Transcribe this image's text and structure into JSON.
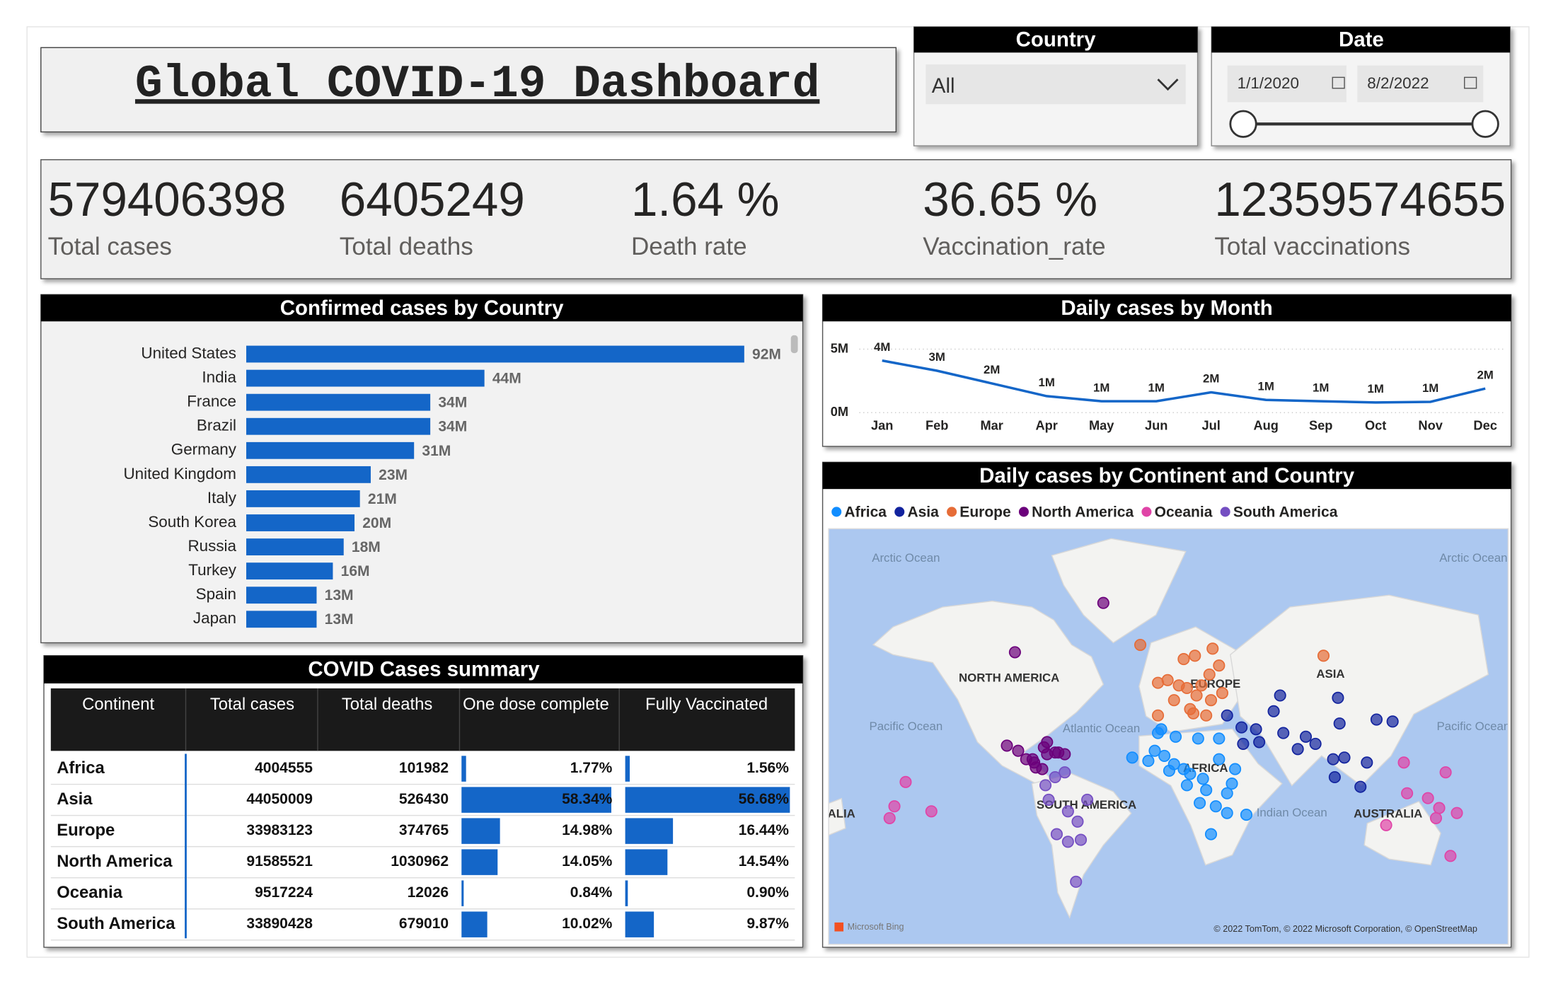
{
  "title": "Global COVID-19 Dashboard",
  "filters": {
    "country": {
      "label": "Country",
      "value": "All"
    },
    "date": {
      "label": "Date",
      "start": "1/1/2020",
      "end": "8/2/2022"
    }
  },
  "kpis": [
    {
      "value": "579406398",
      "label": "Total cases"
    },
    {
      "value": "6405249",
      "label": "Total deaths"
    },
    {
      "value": "1.64 %",
      "label": "Death rate"
    },
    {
      "value": "36.65 %",
      "label": "Vaccination_rate"
    },
    {
      "value": "12359574655",
      "label": "Total vaccinations"
    }
  ],
  "chart_data": [
    {
      "type": "bar",
      "orientation": "horizontal",
      "title": "Confirmed cases by Country",
      "color": "#1466c8",
      "categories": [
        "United States",
        "India",
        "France",
        "Brazil",
        "Germany",
        "United Kingdom",
        "Italy",
        "South Korea",
        "Russia",
        "Turkey",
        "Spain",
        "Japan"
      ],
      "values": [
        92,
        44,
        34,
        34,
        31,
        23,
        21,
        20,
        18,
        16,
        13,
        13
      ],
      "value_labels": [
        "92M",
        "44M",
        "34M",
        "34M",
        "31M",
        "23M",
        "21M",
        "20M",
        "18M",
        "16M",
        "13M",
        "13M"
      ]
    },
    {
      "type": "line",
      "title": "Daily cases by Month",
      "color": "#1466c8",
      "categories": [
        "Jan",
        "Feb",
        "Mar",
        "Apr",
        "May",
        "Jun",
        "Jul",
        "Aug",
        "Sep",
        "Oct",
        "Nov",
        "Dec"
      ],
      "values": [
        4.1,
        3.3,
        2.3,
        1.3,
        0.9,
        0.9,
        1.6,
        1.0,
        0.9,
        0.8,
        0.85,
        1.9
      ],
      "value_labels": [
        "4M",
        "3M",
        "2M",
        "1M",
        "1M",
        "1M",
        "2M",
        "1M",
        "1M",
        "1M",
        "1M",
        "2M"
      ],
      "ylim": [
        0,
        5
      ],
      "yticks": [
        {
          "value": 0,
          "label": "0M"
        },
        {
          "value": 5,
          "label": "5M"
        }
      ],
      "grid": true
    },
    {
      "type": "map",
      "title": "Daily cases by Continent and Country",
      "annotations": [
        "Arctic Ocean",
        "Arctic Ocean",
        "Pacific Ocean",
        "Pacific Ocean",
        "Atlantic Ocean",
        "Indian Ocean",
        "NORTH AMERICA",
        "SOUTH AMERICA",
        "EUROPE",
        "AFRICA",
        "ASIA",
        "AUSTRALIA",
        "ALIA"
      ],
      "attribution": [
        "Microsoft Bing",
        "© 2022 TomTom, © 2022 Microsoft Corporation, © OpenStreetMap"
      ],
      "series": [
        {
          "name": "Africa",
          "color": "#118dff",
          "lat": [
            9,
            27,
            30,
            0,
            9,
            32,
            28,
            8,
            14,
            -4,
            -12,
            -19,
            15,
            -6,
            -14,
            17,
            6,
            27,
            -18,
            16,
            -30,
            3,
            12,
            -1,
            20
          ],
          "lon": [
            8,
            30,
            -8,
            38,
            40,
            -6,
            3,
            -1,
            -14,
            22,
            18,
            47,
            30,
            35,
            28,
            -4,
            12,
            17,
            35,
            -24,
            25,
            20,
            2,
            10,
            -10
          ]
        },
        {
          "name": "Asia",
          "color": "#12239e",
          "lat": [
            35,
            21,
            36,
            37,
            -2,
            32,
            24,
            30,
            16,
            15,
            13,
            48,
            39,
            4,
            24,
            33,
            47,
            28,
            41,
            25
          ],
          "lon": [
            105,
            79,
            138,
            128,
            118,
            53,
            45,
            70,
            108,
            101,
            122,
            68,
            35,
            102,
            90,
            44,
            104,
            84,
            64,
            55
          ]
        },
        {
          "name": "Europe",
          "color": "#e66c37",
          "lat": [
            51,
            46,
            54,
            42,
            40,
            52,
            62,
            61,
            64,
            49,
            62,
            65,
            53,
            39,
            46,
            52,
            39,
            56,
            48,
            59
          ],
          "lon": [
            10,
            2,
            -2,
            12,
            14,
            19,
            15,
            8,
            26,
            32,
            95,
            -19,
            -8,
            22,
            25,
            5,
            -8,
            24,
            16,
            30
          ]
        },
        {
          "name": "North America",
          "color": "#6b007b",
          "lat": [
            63,
            23,
            22,
            15,
            15,
            19,
            19,
            18,
            9,
            10,
            74,
            25,
            18,
            13,
            20
          ],
          "lon": [
            -97,
            -102,
            -79,
            -90,
            -86,
            -72,
            -70,
            -77,
            -80,
            -84,
            -42,
            -77,
            -66,
            -85,
            -95
          ]
        },
        {
          "name": "Oceania",
          "color": "#e044a7",
          "lat": [
            -25,
            -41,
            -18,
            -6,
            -14,
            -21,
            -17,
            13,
            -9,
            -21,
            -15,
            7,
            1
          ],
          "lon": [
            134,
            174,
            178,
            147,
            -172,
            -175,
            -149,
            145,
            160,
            165,
            167,
            171,
            -165
          ]
        },
        {
          "name": "South America",
          "color": "#744ec2",
          "lat": [
            -10,
            -34,
            -30,
            -10,
            4,
            7,
            -1,
            -17,
            -23,
            -33,
            -52
          ],
          "lon": [
            -52,
            -64,
            -71,
            -76,
            -72,
            -66,
            -78,
            -64,
            -58,
            -56,
            -59
          ]
        }
      ]
    }
  ],
  "table": {
    "title": "COVID Cases summary",
    "columns": [
      "Continent",
      "Total cases",
      "Total deaths",
      "One dose complete",
      "Fully Vaccinated"
    ],
    "rows": [
      [
        "Africa",
        4004555,
        101982,
        {
          "value": 1.77,
          "label": "1.77%"
        },
        {
          "value": 1.56,
          "label": "1.56%"
        }
      ],
      [
        "Asia",
        44050009,
        526430,
        {
          "value": 58.34,
          "label": "58.34%"
        },
        {
          "value": 56.68,
          "label": "56.68%"
        }
      ],
      [
        "Europe",
        33983123,
        374765,
        {
          "value": 14.98,
          "label": "14.98%"
        },
        {
          "value": 16.44,
          "label": "16.44%"
        }
      ],
      [
        "North America",
        91585521,
        1030962,
        {
          "value": 14.05,
          "label": "14.05%"
        },
        {
          "value": 14.54,
          "label": "14.54%"
        }
      ],
      [
        "Oceania",
        9517224,
        12026,
        {
          "value": 0.84,
          "label": "0.84%"
        },
        {
          "value": 0.9,
          "label": "0.90%"
        }
      ],
      [
        "South America",
        33890428,
        679010,
        {
          "value": 10.02,
          "label": "10.02%"
        },
        {
          "value": 9.87,
          "label": "9.87%"
        }
      ]
    ]
  }
}
